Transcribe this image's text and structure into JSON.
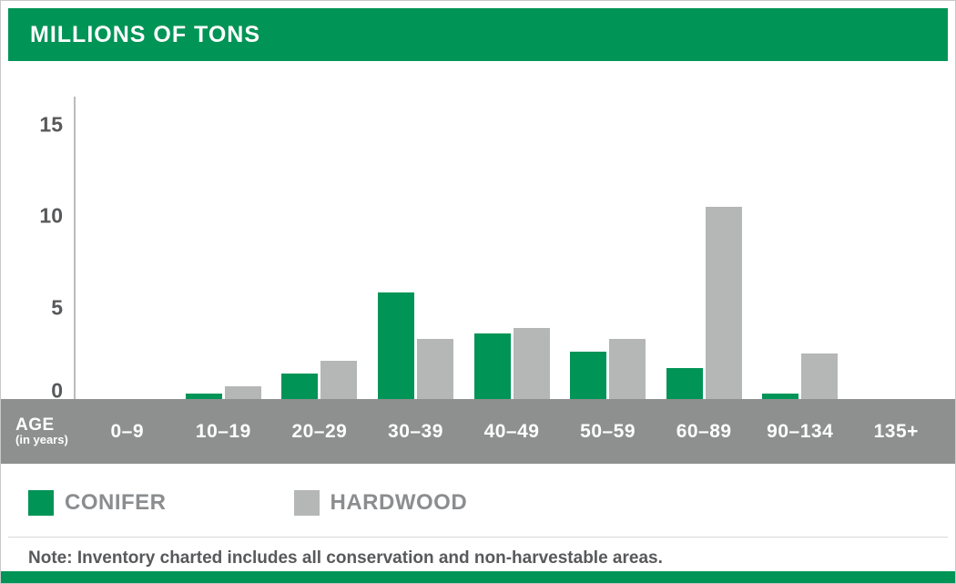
{
  "header": {
    "title": "MILLIONS OF TONS"
  },
  "colors": {
    "green": "#009456",
    "gray_bar": "#b5b6b6",
    "band_gray": "#8e9090",
    "text_gray": "#58595b",
    "legend_text": "#8b8d8f"
  },
  "y_axis": {
    "ticks": [
      0,
      5,
      10,
      15
    ]
  },
  "x_axis": {
    "label": "AGE",
    "sublabel": "(in years)",
    "categories": [
      "0–9",
      "10–19",
      "20–29",
      "30–39",
      "40–49",
      "50–59",
      "60–89",
      "90–134",
      "135+"
    ]
  },
  "legend": [
    {
      "label": "CONIFER",
      "color": "#009456"
    },
    {
      "label": "HARDWOOD",
      "color": "#b5b6b6"
    }
  ],
  "note": "Note: Inventory charted includes all conservation and non-harvestable areas.",
  "chart_data": {
    "type": "bar",
    "title": "MILLIONS OF TONS",
    "xlabel": "AGE (in years)",
    "ylabel": "Millions of tons",
    "categories": [
      "0–9",
      "10–19",
      "20–29",
      "30–39",
      "40–49",
      "50–59",
      "60–89",
      "90–134",
      "135+"
    ],
    "series": [
      {
        "name": "CONIFER",
        "values": [
          0,
          0.3,
          1.4,
          5.8,
          3.6,
          2.6,
          1.7,
          0.3,
          0
        ]
      },
      {
        "name": "HARDWOOD",
        "values": [
          0,
          0.7,
          2.1,
          3.3,
          3.9,
          3.3,
          10.5,
          2.5,
          0
        ]
      }
    ],
    "ylim": [
      0,
      15
    ],
    "y_ticks": [
      0,
      5,
      10,
      15
    ],
    "grid": false,
    "legend_position": "bottom"
  }
}
